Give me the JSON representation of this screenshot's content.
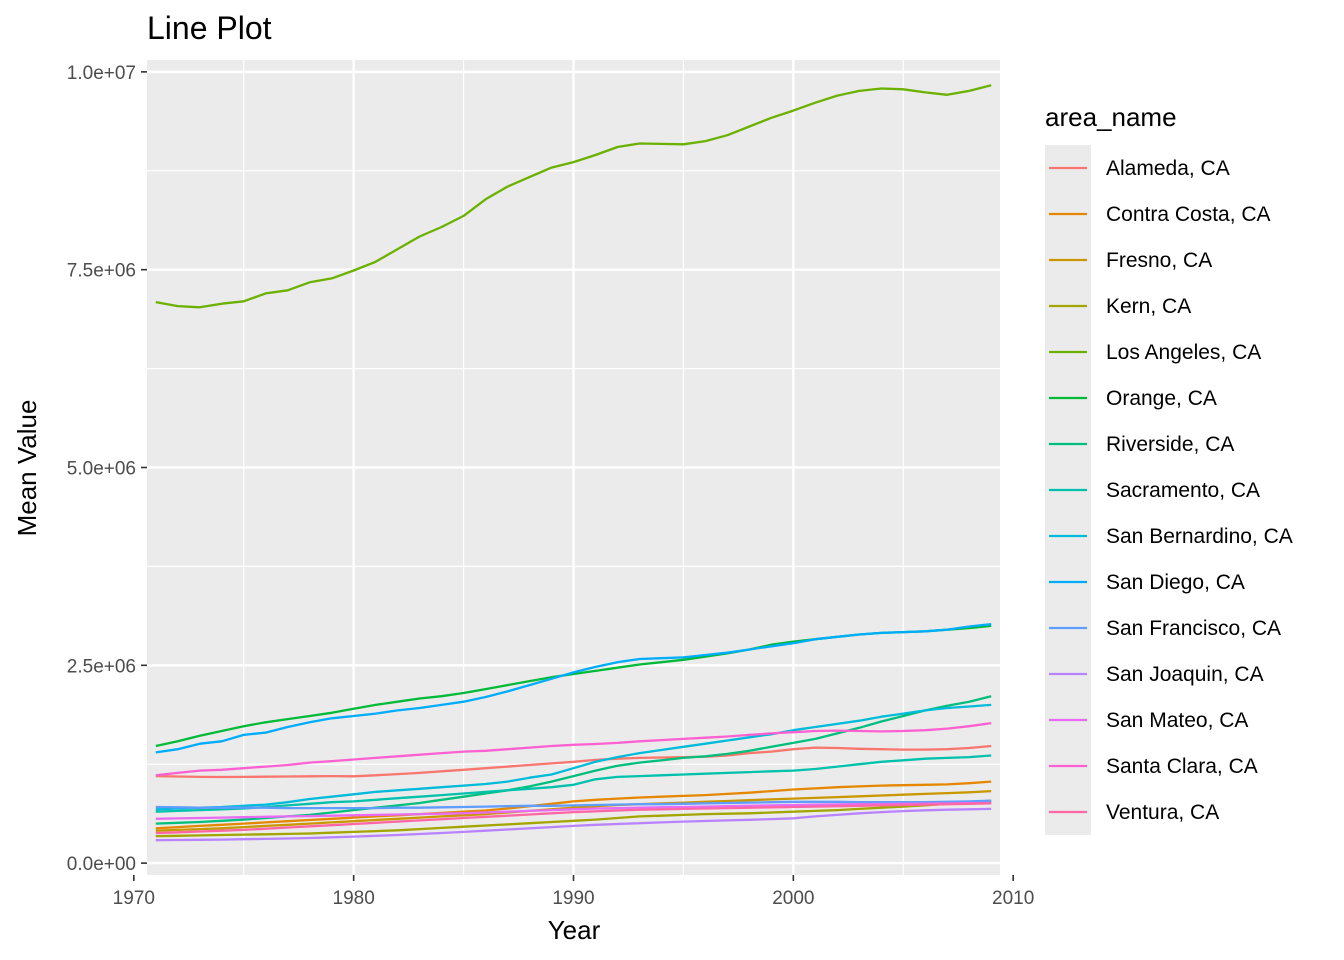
{
  "chart_data": {
    "type": "line",
    "title": "Line Plot",
    "xlabel": "Year",
    "ylabel": "Mean Value",
    "xlim": [
      1970.6,
      2009.4
    ],
    "ylim": [
      -150000,
      10150000
    ],
    "x_ticks": [
      1970,
      1980,
      1990,
      2000,
      2010
    ],
    "x_tick_labels": [
      "1970",
      "1980",
      "1990",
      "2000",
      "2010"
    ],
    "y_ticks": [
      0,
      2500000,
      5000000,
      7500000,
      10000000
    ],
    "y_tick_labels": [
      "0.0e+00",
      "2.5e+06",
      "5.0e+06",
      "7.5e+06",
      "1.0e+07"
    ],
    "grid": true,
    "legend_position": "right",
    "legend_title": "area_name",
    "x_start": 1971,
    "series": [
      {
        "name": "Alameda, CA",
        "color": "#F8766D",
        "values": [
          1100000,
          1095000,
          1090000,
          1088000,
          1090000,
          1092000,
          1095000,
          1098000,
          1100000,
          1098000,
          1110000,
          1125000,
          1140000,
          1160000,
          1180000,
          1200000,
          1220000,
          1240000,
          1260000,
          1280000,
          1305000,
          1320000,
          1330000,
          1335000,
          1340000,
          1345000,
          1360000,
          1390000,
          1410000,
          1440000,
          1460000,
          1455000,
          1445000,
          1440000,
          1435000,
          1435000,
          1440000,
          1455000,
          1480000
        ]
      },
      {
        "name": "Contra Costa, CA",
        "color": "#E58700",
        "values": [
          440000,
          455000,
          470000,
          485000,
          500000,
          515000,
          530000,
          545000,
          560000,
          575000,
          590000,
          605000,
          620000,
          635000,
          650000,
          665000,
          690000,
          720000,
          750000,
          780000,
          800000,
          815000,
          830000,
          840000,
          850000,
          860000,
          875000,
          890000,
          910000,
          930000,
          945000,
          960000,
          970000,
          980000,
          985000,
          990000,
          995000,
          1010000,
          1030000
        ]
      },
      {
        "name": "Fresno, CA",
        "color": "#C99800",
        "values": [
          410000,
          420000,
          430000,
          440000,
          455000,
          470000,
          485000,
          500000,
          515000,
          530000,
          545000,
          560000,
          575000,
          590000,
          605000,
          620000,
          640000,
          660000,
          680000,
          700000,
          720000,
          735000,
          745000,
          755000,
          765000,
          775000,
          785000,
          795000,
          805000,
          815000,
          825000,
          835000,
          845000,
          855000,
          865000,
          875000,
          885000,
          895000,
          910000
        ]
      },
      {
        "name": "Kern, CA",
        "color": "#A3A500",
        "values": [
          340000,
          345000,
          350000,
          355000,
          360000,
          365000,
          370000,
          375000,
          385000,
          395000,
          405000,
          415000,
          430000,
          445000,
          460000,
          475000,
          490000,
          505000,
          520000,
          535000,
          550000,
          570000,
          590000,
          600000,
          610000,
          620000,
          625000,
          630000,
          640000,
          650000,
          660000,
          670000,
          685000,
          700000,
          715000,
          730000,
          750000,
          770000,
          790000
        ]
      },
      {
        "name": "Los Angeles, CA",
        "color": "#6BB100",
        "values": [
          7090000,
          7040000,
          7025000,
          7070000,
          7100000,
          7200000,
          7240000,
          7340000,
          7390000,
          7490000,
          7600000,
          7760000,
          7920000,
          8040000,
          8180000,
          8390000,
          8550000,
          8670000,
          8790000,
          8860000,
          8950000,
          9050000,
          9095000,
          9090000,
          9085000,
          9125000,
          9200000,
          9310000,
          9420000,
          9510000,
          9610000,
          9700000,
          9760000,
          9790000,
          9780000,
          9740000,
          9710000,
          9760000,
          9830000
        ]
      },
      {
        "name": "Orange, CA",
        "color": "#00BA38",
        "values": [
          1480000,
          1540000,
          1610000,
          1670000,
          1730000,
          1780000,
          1820000,
          1860000,
          1900000,
          1950000,
          2000000,
          2040000,
          2080000,
          2110000,
          2150000,
          2200000,
          2250000,
          2300000,
          2350000,
          2390000,
          2430000,
          2470000,
          2510000,
          2540000,
          2570000,
          2610000,
          2650000,
          2700000,
          2760000,
          2800000,
          2830000,
          2860000,
          2890000,
          2910000,
          2920000,
          2930000,
          2950000,
          2970000,
          3000000
        ]
      },
      {
        "name": "Riverside, CA",
        "color": "#00BF7D",
        "values": [
          500000,
          510000,
          520000,
          535000,
          550000,
          570000,
          590000,
          610000,
          640000,
          670000,
          700000,
          730000,
          760000,
          800000,
          840000,
          880000,
          920000,
          970000,
          1030000,
          1100000,
          1170000,
          1230000,
          1270000,
          1300000,
          1330000,
          1350000,
          1380000,
          1420000,
          1470000,
          1520000,
          1570000,
          1640000,
          1710000,
          1790000,
          1860000,
          1930000,
          1990000,
          2040000,
          2110000
        ]
      },
      {
        "name": "Sacramento, CA",
        "color": "#00C1AB",
        "values": [
          650000,
          660000,
          670000,
          680000,
          690000,
          710000,
          730000,
          750000,
          770000,
          780000,
          800000,
          820000,
          840000,
          860000,
          880000,
          900000,
          920000,
          940000,
          960000,
          990000,
          1060000,
          1090000,
          1100000,
          1110000,
          1120000,
          1130000,
          1140000,
          1150000,
          1160000,
          1170000,
          1190000,
          1220000,
          1250000,
          1280000,
          1300000,
          1320000,
          1330000,
          1340000,
          1360000
        ]
      },
      {
        "name": "San Bernardino, CA",
        "color": "#00BBDA",
        "values": [
          680000,
          690000,
          700000,
          710000,
          725000,
          740000,
          770000,
          810000,
          840000,
          870000,
          900000,
          920000,
          940000,
          960000,
          980000,
          1000000,
          1030000,
          1080000,
          1120000,
          1200000,
          1280000,
          1340000,
          1390000,
          1430000,
          1470000,
          1510000,
          1550000,
          1590000,
          1630000,
          1680000,
          1720000,
          1760000,
          1800000,
          1850000,
          1890000,
          1930000,
          1960000,
          1980000,
          2000000
        ]
      },
      {
        "name": "San Diego, CA",
        "color": "#00ACFC",
        "values": [
          1400000,
          1440000,
          1510000,
          1540000,
          1620000,
          1650000,
          1720000,
          1780000,
          1830000,
          1860000,
          1890000,
          1930000,
          1960000,
          2000000,
          2040000,
          2100000,
          2170000,
          2250000,
          2330000,
          2410000,
          2480000,
          2540000,
          2580000,
          2590000,
          2600000,
          2630000,
          2660000,
          2700000,
          2740000,
          2780000,
          2830000,
          2860000,
          2890000,
          2910000,
          2920000,
          2930000,
          2950000,
          2990000,
          3020000
        ]
      },
      {
        "name": "San Francisco, CA",
        "color": "#619CFF",
        "values": [
          710000,
          705000,
          700000,
          700000,
          700000,
          700000,
          695000,
          695000,
          695000,
          695000,
          695000,
          700000,
          700000,
          705000,
          710000,
          715000,
          720000,
          725000,
          725000,
          730000,
          735000,
          740000,
          745000,
          745000,
          750000,
          755000,
          760000,
          765000,
          770000,
          775000,
          775000,
          775000,
          770000,
          770000,
          770000,
          770000,
          775000,
          780000,
          790000
        ]
      },
      {
        "name": "San Joaquin, CA",
        "color": "#B983FF",
        "values": [
          290000,
          292000,
          295000,
          298000,
          302000,
          306000,
          311000,
          318000,
          326000,
          335000,
          345000,
          356000,
          368000,
          381000,
          395000,
          410000,
          425000,
          440000,
          455000,
          470000,
          485000,
          495000,
          505000,
          515000,
          525000,
          532000,
          540000,
          548000,
          557000,
          566000,
          590000,
          610000,
          630000,
          645000,
          658000,
          668000,
          675000,
          680000,
          685000
        ]
      },
      {
        "name": "San Mateo, CA",
        "color": "#E76BF3",
        "values": [
          560000,
          565000,
          570000,
          575000,
          580000,
          585000,
          590000,
          595000,
          600000,
          605000,
          610000,
          615000,
          620000,
          625000,
          630000,
          640000,
          650000,
          660000,
          670000,
          680000,
          690000,
          695000,
          700000,
          705000,
          710000,
          715000,
          720000,
          725000,
          730000,
          735000,
          740000,
          742000,
          745000,
          747000,
          750000,
          752000,
          755000,
          758000,
          760000
        ]
      },
      {
        "name": "Santa Clara, CA",
        "color": "#FD61D1",
        "values": [
          1110000,
          1140000,
          1170000,
          1180000,
          1200000,
          1220000,
          1240000,
          1270000,
          1290000,
          1310000,
          1330000,
          1350000,
          1370000,
          1390000,
          1410000,
          1420000,
          1440000,
          1460000,
          1480000,
          1495000,
          1505000,
          1520000,
          1540000,
          1555000,
          1570000,
          1585000,
          1600000,
          1620000,
          1640000,
          1655000,
          1670000,
          1675000,
          1670000,
          1665000,
          1670000,
          1680000,
          1700000,
          1730000,
          1770000
        ]
      },
      {
        "name": "Ventura, CA",
        "color": "#FF67A4",
        "values": [
          380000,
          390000,
          400000,
          410000,
          420000,
          435000,
          450000,
          465000,
          480000,
          495000,
          510000,
          525000,
          540000,
          555000,
          570000,
          585000,
          600000,
          615000,
          630000,
          645000,
          655000,
          665000,
          675000,
          680000,
          685000,
          690000,
          695000,
          700000,
          705000,
          710000,
          715000,
          720000,
          725000,
          730000,
          735000,
          740000,
          745000,
          750000,
          755000
        ]
      }
    ]
  }
}
